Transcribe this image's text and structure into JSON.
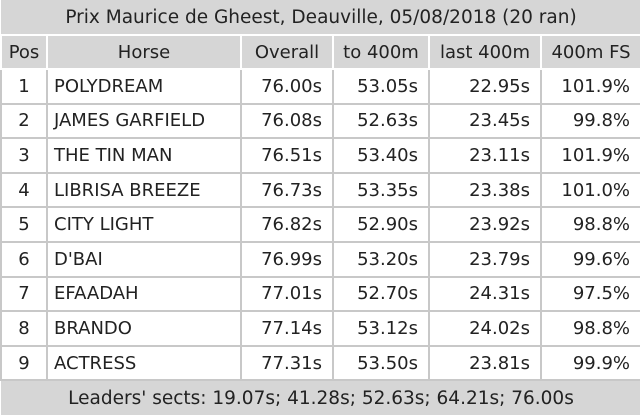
{
  "title": "Prix Maurice de Gheest, Deauville, 05/08/2018 (20 ran)",
  "table": {
    "columns": [
      "Pos",
      "Horse",
      "Overall",
      "to 400m",
      "last 400m",
      "400m FS"
    ],
    "rows": [
      [
        "1",
        "POLYDREAM",
        "76.00s",
        "53.05s",
        "22.95s",
        "101.9%"
      ],
      [
        "2",
        "JAMES GARFIELD",
        "76.08s",
        "52.63s",
        "23.45s",
        "99.8%"
      ],
      [
        "3",
        "THE TIN MAN",
        "76.51s",
        "53.40s",
        "23.11s",
        "101.9%"
      ],
      [
        "4",
        "LIBRISA BREEZE",
        "76.73s",
        "53.35s",
        "23.38s",
        "101.0%"
      ],
      [
        "5",
        "CITY LIGHT",
        "76.82s",
        "52.90s",
        "23.92s",
        "98.8%"
      ],
      [
        "6",
        "D'BAI",
        "76.99s",
        "53.20s",
        "23.79s",
        "99.6%"
      ],
      [
        "7",
        "EFAADAH",
        "77.01s",
        "52.70s",
        "24.31s",
        "97.5%"
      ],
      [
        "8",
        "BRANDO",
        "77.14s",
        "53.12s",
        "24.02s",
        "98.8%"
      ],
      [
        "9",
        "ACTRESS",
        "77.31s",
        "53.50s",
        "23.81s",
        "99.9%"
      ]
    ]
  },
  "footer": "Leaders' sects: 19.07s; 41.28s; 52.63s; 64.21s; 76.00s"
}
